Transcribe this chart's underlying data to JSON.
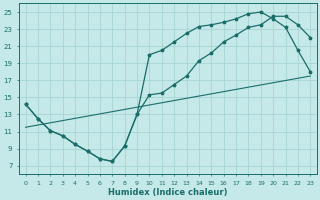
{
  "xlabel": "Humidex (Indice chaleur)",
  "background_color": "#c5e8e8",
  "grid_color": "#a8d4d4",
  "line_color": "#1a6e6a",
  "xlim": [
    -0.5,
    23.5
  ],
  "ylim": [
    6.0,
    26.0
  ],
  "xticks": [
    0,
    1,
    2,
    3,
    4,
    5,
    6,
    7,
    8,
    9,
    10,
    11,
    12,
    13,
    14,
    15,
    16,
    17,
    18,
    19,
    20,
    21,
    22,
    23
  ],
  "yticks": [
    7,
    9,
    11,
    13,
    15,
    17,
    19,
    21,
    23,
    25
  ],
  "line1_x": [
    0,
    1,
    2,
    3,
    4,
    5,
    6,
    7,
    8,
    9,
    10,
    11,
    12,
    13,
    14,
    15,
    16,
    17,
    18,
    19,
    20,
    21,
    22,
    23
  ],
  "line1_y": [
    14.2,
    12.5,
    11.1,
    10.5,
    9.5,
    8.7,
    7.8,
    7.5,
    9.3,
    13.0,
    15.3,
    15.5,
    16.5,
    17.5,
    19.3,
    20.2,
    21.5,
    22.3,
    23.2,
    23.5,
    24.5,
    24.5,
    23.5,
    22.0
  ],
  "line2_x": [
    0,
    1,
    2,
    3,
    4,
    5,
    6,
    7,
    8,
    9,
    10,
    11,
    12,
    13,
    14,
    15,
    16,
    17,
    18,
    19,
    20,
    21,
    22,
    23
  ],
  "line2_y": [
    14.2,
    12.5,
    11.1,
    10.5,
    9.5,
    8.7,
    7.8,
    7.5,
    9.3,
    13.0,
    20.0,
    20.5,
    21.5,
    22.5,
    23.3,
    23.5,
    23.8,
    24.2,
    24.8,
    25.0,
    24.2,
    23.2,
    20.5,
    18.0
  ],
  "line3_x": [
    0,
    23
  ],
  "line3_y": [
    11.5,
    17.5
  ]
}
